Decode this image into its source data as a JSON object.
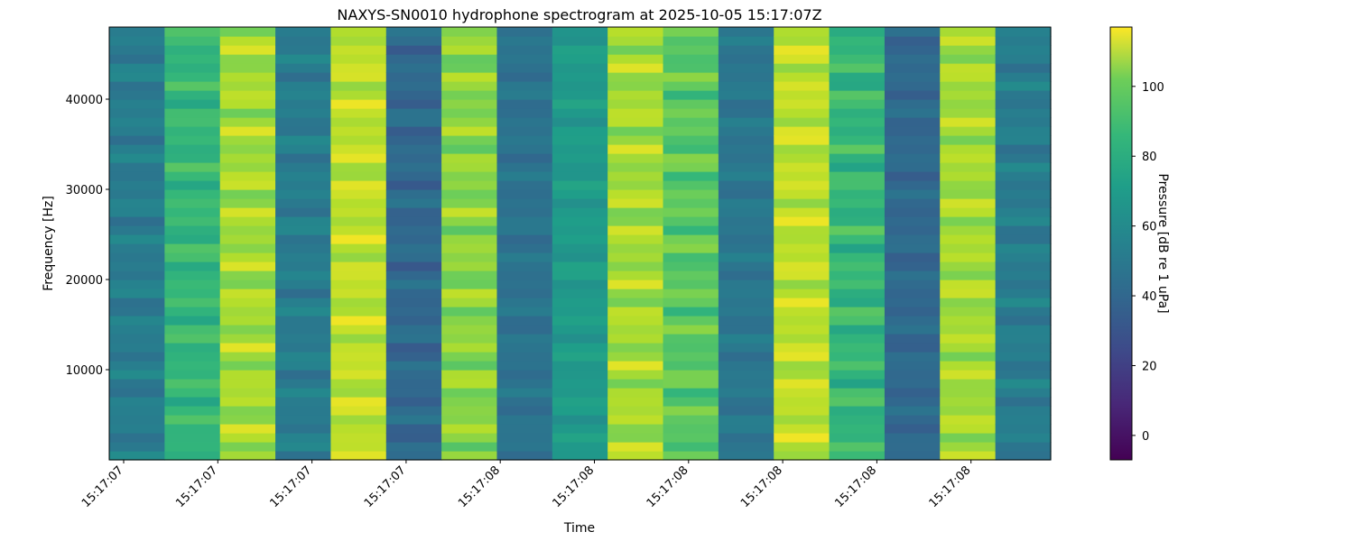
{
  "chart_data": {
    "type": "heatmap",
    "title": "NAXYS-SN0010 hydrophone spectrogram at 2025-10-05 15:17:07Z",
    "xlabel": "Time",
    "ylabel": "Frequency [Hz]",
    "colorbar_label": "Pressure [dB re 1 uPa]",
    "colormap": "viridis",
    "x_tick_labels": [
      "15:17:07",
      "15:17:07",
      "15:17:07",
      "15:17:07",
      "15:17:08",
      "15:17:08",
      "15:17:08",
      "15:17:08",
      "15:17:08",
      "15:17:08"
    ],
    "y_ticks": [
      10000,
      20000,
      30000,
      40000
    ],
    "y_tick_labels": [
      "10000",
      "20000",
      "30000",
      "40000"
    ],
    "ylim": [
      0,
      48000
    ],
    "colorbar_ticks": [
      0,
      20,
      40,
      60,
      80,
      100
    ],
    "colorbar_tick_labels": [
      "0",
      "20",
      "40",
      "60",
      "80",
      "100"
    ],
    "clim": [
      -7,
      117
    ],
    "time_bands": [
      {
        "level_db": 45,
        "ripple_db": 8
      },
      {
        "level_db": 75,
        "ripple_db": 10
      },
      {
        "level_db": 100,
        "ripple_db": 12
      },
      {
        "level_db": 45,
        "ripple_db": 8
      },
      {
        "level_db": 105,
        "ripple_db": 10
      },
      {
        "level_db": 35,
        "ripple_db": 8
      },
      {
        "level_db": 95,
        "ripple_db": 12
      },
      {
        "level_db": 40,
        "ripple_db": 6
      },
      {
        "level_db": 60,
        "ripple_db": 6
      },
      {
        "level_db": 100,
        "ripple_db": 12
      },
      {
        "level_db": 85,
        "ripple_db": 12
      },
      {
        "level_db": 42,
        "ripple_db": 6
      },
      {
        "level_db": 105,
        "ripple_db": 10
      },
      {
        "level_db": 75,
        "ripple_db": 12
      },
      {
        "level_db": 35,
        "ripple_db": 6
      },
      {
        "level_db": 100,
        "ripple_db": 10
      },
      {
        "level_db": 45,
        "ripple_db": 8
      }
    ]
  }
}
